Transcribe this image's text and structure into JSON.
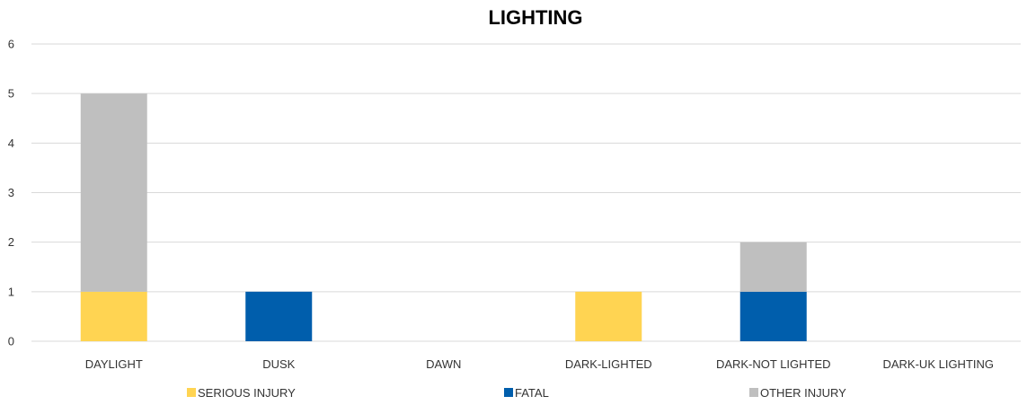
{
  "chart_data": {
    "type": "bar",
    "stacked": true,
    "title": "LIGHTING",
    "xlabel": "",
    "ylabel": "",
    "categories": [
      "DAYLIGHT",
      "DUSK",
      "DAWN",
      "DARK-LIGHTED",
      "DARK-NOT LIGHTED",
      "DARK-UK LIGHTING"
    ],
    "series": [
      {
        "name": "SERIOUS INJURY",
        "color": "#FFD452",
        "values": [
          1,
          0,
          0,
          1,
          0,
          0
        ]
      },
      {
        "name": "FATAL",
        "color": "#005EAC",
        "values": [
          0,
          1,
          0,
          0,
          1,
          0
        ]
      },
      {
        "name": "OTHER INJURY",
        "color": "#BFBFBF",
        "values": [
          4,
          0,
          0,
          0,
          1,
          0
        ]
      }
    ],
    "ylim": [
      0,
      6
    ],
    "yticks": [
      0,
      1,
      2,
      3,
      4,
      5,
      6
    ],
    "grid": true,
    "legend_position": "bottom",
    "gridline_color": "#D9D9D9"
  }
}
